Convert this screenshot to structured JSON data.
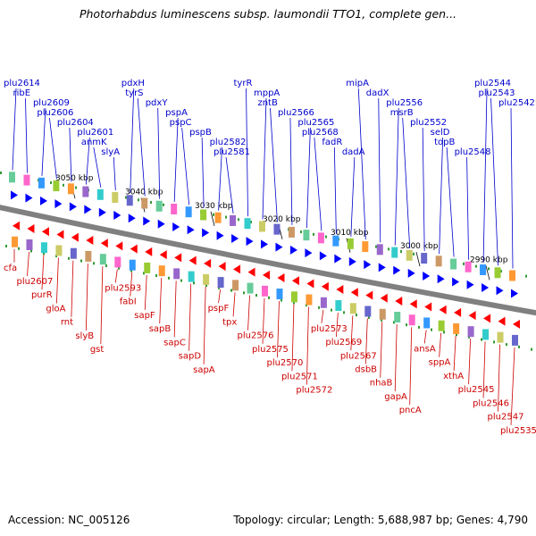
{
  "title": "Photorhabdus luminescens subsp. laumondii TTO1, complete gen...",
  "accession_text": "Accession: NC_005126",
  "topology_text": "Topology: circular; Length: 5,688,987 bp; Genes: 4,790",
  "ticks": [
    "3050 kbp",
    "3040 kbp",
    "3030 kbp",
    "3020 kbp",
    "3010 kbp",
    "3000 kbp",
    "2990 kbp"
  ],
  "top_genes": [
    "plu2614",
    "ribE",
    "plu2609",
    "plu2606",
    "plu2604",
    "plu2601",
    "anmK",
    "slyA",
    "pdxH",
    "tyrS",
    "pdxY",
    "pspA",
    "pspC",
    "pspB",
    "plu2582",
    "plu2581",
    "tyrR",
    "mppA",
    "zntB",
    "plu2566",
    "plu2565",
    "plu2568",
    "fadR",
    "dadA",
    "mipA",
    "dadX",
    "plu2556",
    "msrB",
    "plu2552",
    "selD",
    "topB",
    "plu2548",
    "plu2544",
    "plu2543",
    "plu2542"
  ],
  "bottom_genes": [
    "cfa",
    "plu2607",
    "purR",
    "gloA",
    "rnt",
    "slyB",
    "gst",
    "plu2593",
    "fabI",
    "sapF",
    "sapB",
    "sapC",
    "sapD",
    "sapA",
    "pspF",
    "tpx",
    "plu2576",
    "plu2575",
    "plu2570",
    "plu2571",
    "plu2572",
    "plu2573",
    "plu2569",
    "plu2567",
    "dsbB",
    "nhaB",
    "gapA",
    "pncA",
    "ansA",
    "sppA",
    "xthA",
    "plu2545",
    "plu2546",
    "plu2547",
    "plu2535"
  ],
  "colors": {
    "top_label": "#0000cc",
    "bottom_label": "#cc0000",
    "forward_gene": "#0000ff",
    "reverse_gene": "#ff0000",
    "backbone": "#808080",
    "tick_mark": "#339933"
  }
}
